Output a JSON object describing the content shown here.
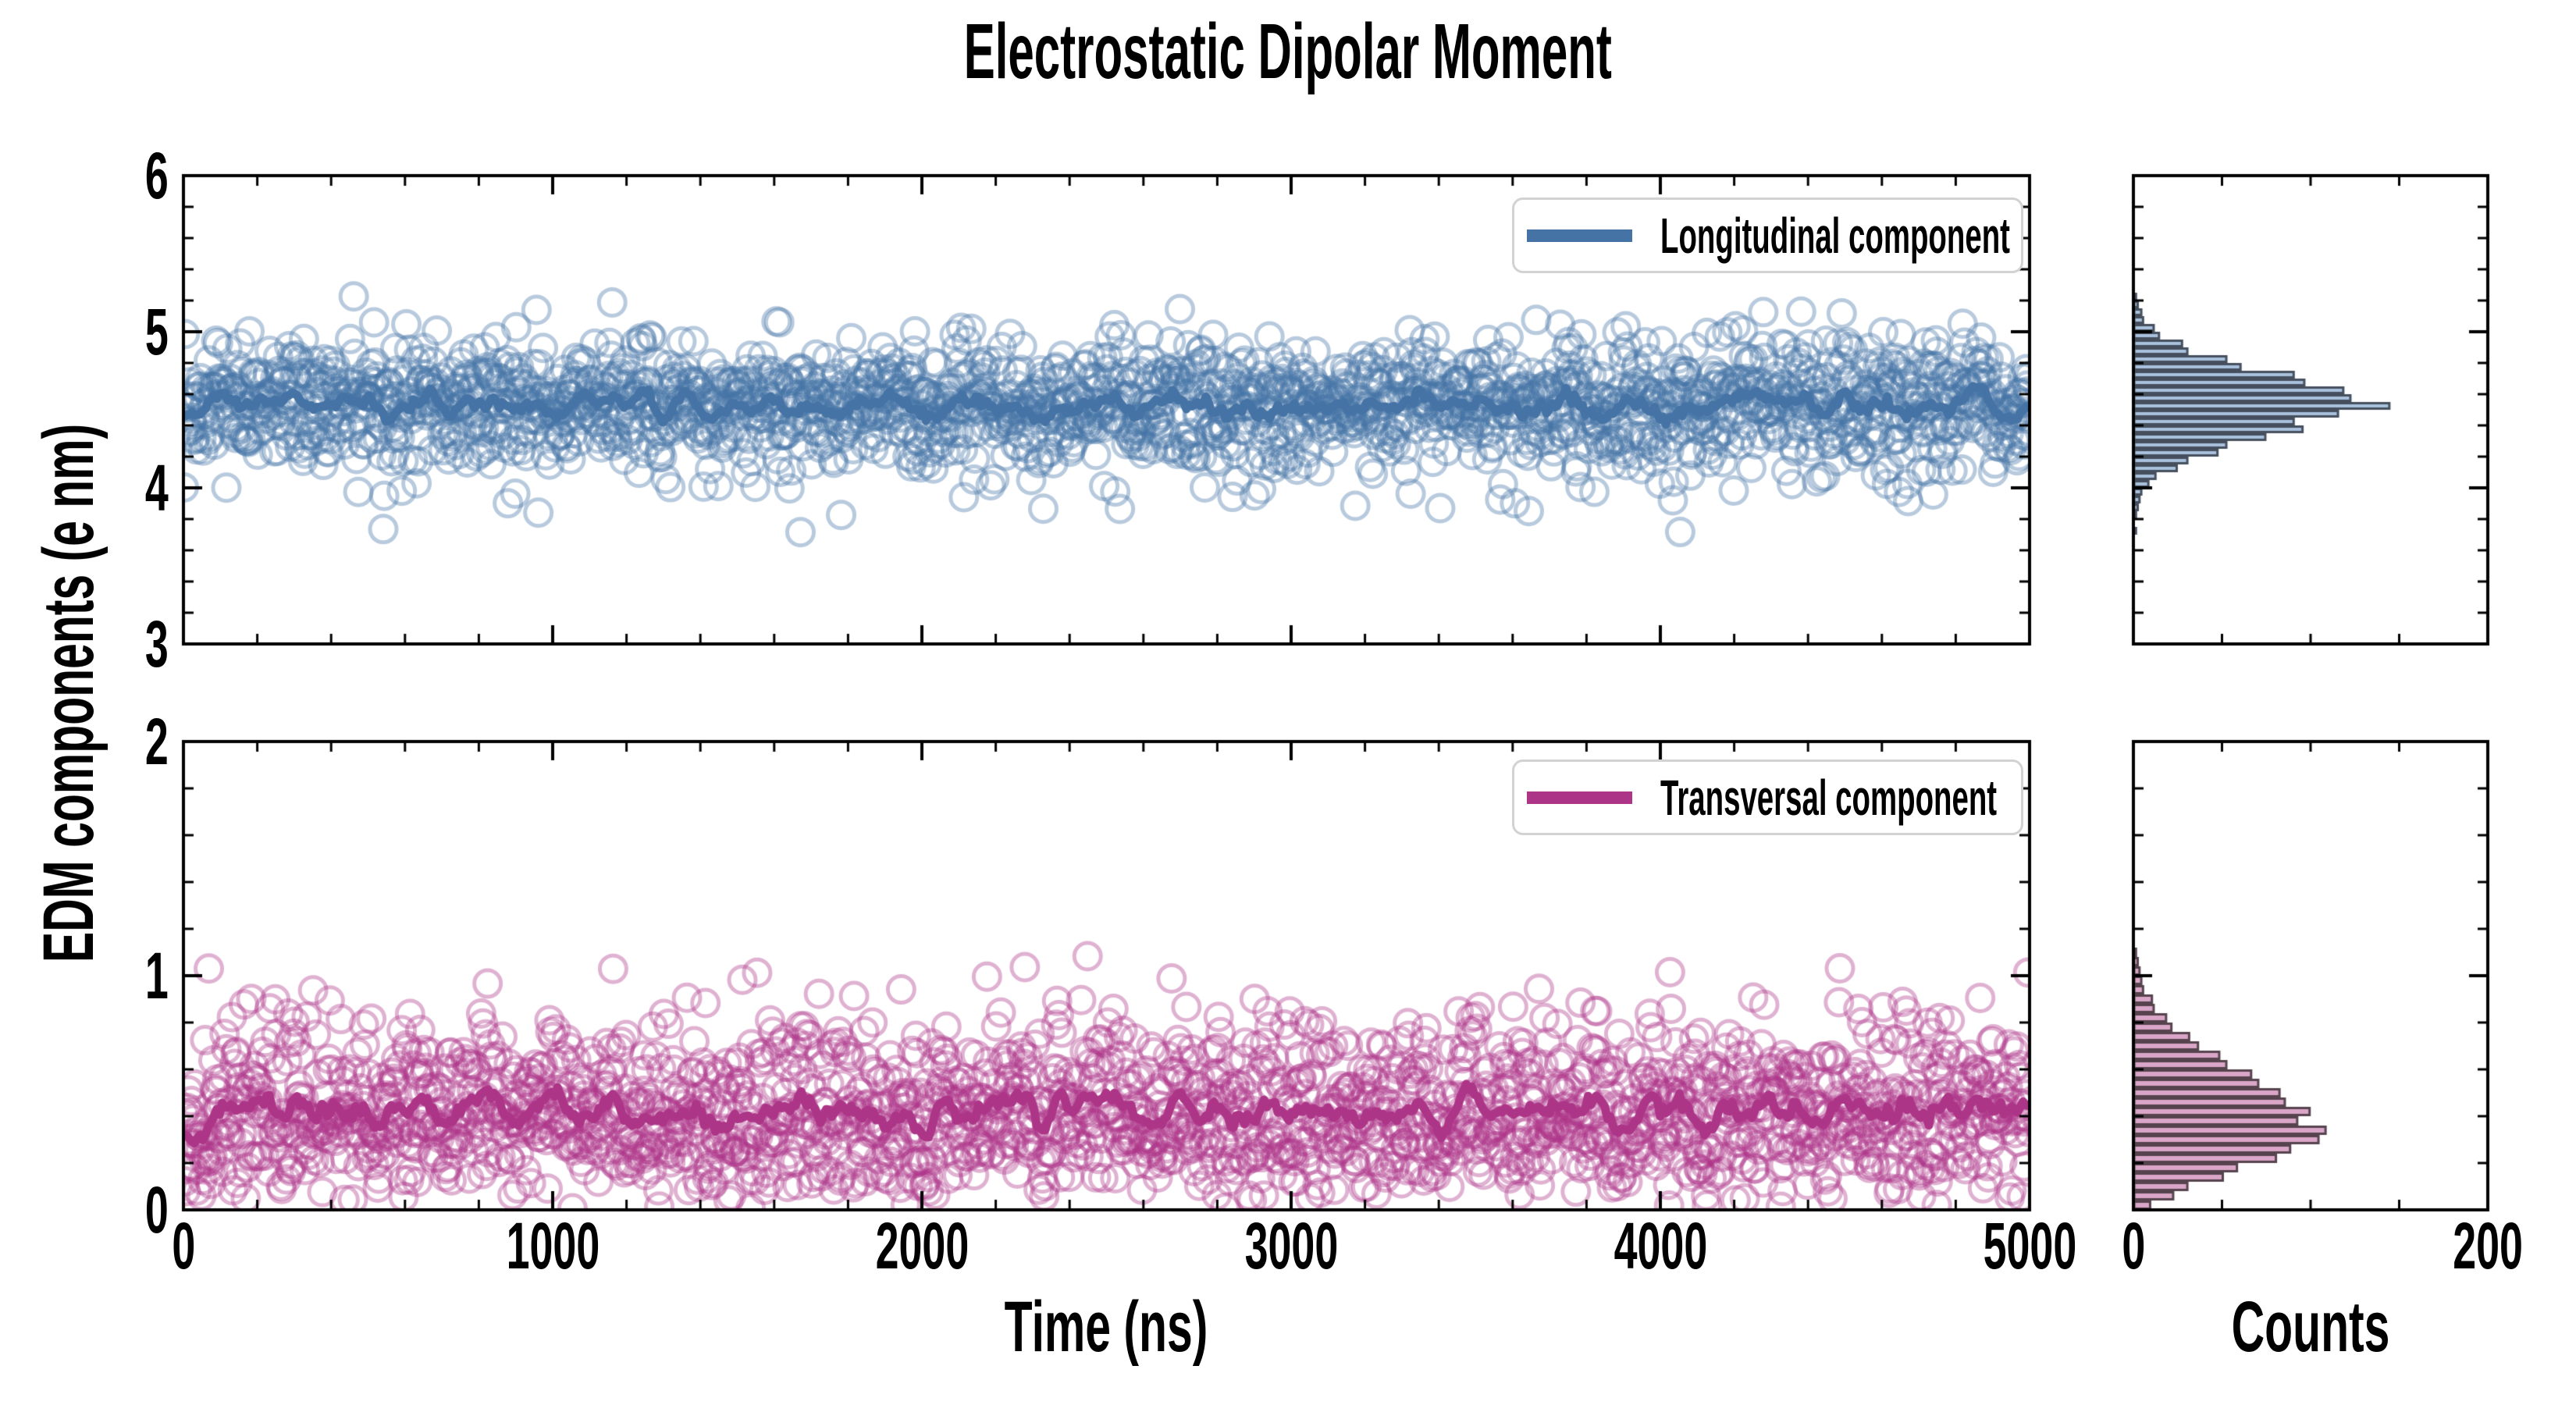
{
  "title": "Electrostatic Dipolar Moment",
  "axes": {
    "x_label": "Time (ns)",
    "y_label": "EDM components (e nm)",
    "counts_label": "Counts"
  },
  "chart_data": [
    {
      "type": "scatter",
      "panel": "top",
      "series": [
        {
          "name": "Longitudinal component",
          "style": "open-circle-scatter",
          "n_points": 2000,
          "mean": 4.51,
          "std": 0.24
        },
        {
          "name": "Longitudinal running mean",
          "style": "line",
          "window_pts": 21
        }
      ],
      "x": {
        "range": [
          0,
          5000
        ],
        "ticks": [
          0,
          1000,
          2000,
          3000,
          4000,
          5000
        ],
        "minor_step": 200
      },
      "y": {
        "range": [
          3,
          6
        ],
        "ticks": [
          6,
          5,
          4,
          3
        ],
        "minor_step": 0.2
      },
      "legend": {
        "label": "Longitudinal component",
        "position": "upper right"
      },
      "colors": {
        "line": "#4573a5",
        "scatter": "#4573a5",
        "scatter_alpha": 0.38,
        "hist_fill": "#a9c1dc",
        "hist_edge": "#454f5e"
      },
      "histogram": {
        "orientation": "horizontal",
        "counts_axis": {
          "range": [
            0,
            200
          ],
          "ticks": [
            0,
            200
          ],
          "minor_step": 50
        },
        "bin_start": 3.7,
        "bin_width": 0.05,
        "counts": [
          1,
          0,
          1,
          2,
          3,
          4,
          8,
          12,
          24,
          30,
          47,
          52,
          74,
          95,
          90,
          115,
          144,
          122,
          118,
          96,
          90,
          60,
          52,
          30,
          27,
          14,
          11,
          5,
          4,
          2,
          1
        ]
      },
      "seed": 7,
      "grid": false
    },
    {
      "type": "scatter",
      "panel": "bottom",
      "series": [
        {
          "name": "Transversal component",
          "style": "open-circle-scatter",
          "n_points": 2000,
          "mean": 0.41,
          "std": 0.21
        },
        {
          "name": "Transversal running mean",
          "style": "line",
          "window_pts": 21
        }
      ],
      "x": {
        "range": [
          0,
          5000
        ],
        "ticks": [
          0,
          1000,
          2000,
          3000,
          4000,
          5000
        ],
        "minor_step": 200
      },
      "y": {
        "range": [
          0,
          2
        ],
        "ticks": [
          2,
          1,
          0
        ],
        "minor_step": 0.2
      },
      "legend": {
        "label": "Transversal component",
        "position": "upper right"
      },
      "colors": {
        "line": "#ad3588",
        "scatter": "#ad3588",
        "scatter_alpha": 0.38,
        "hist_fill": "#d9a6c8",
        "hist_edge": "#56434e"
      },
      "histogram": {
        "orientation": "horizontal",
        "counts_axis": {
          "range": [
            0,
            200
          ],
          "ticks": [
            0,
            200
          ],
          "minor_step": 50
        },
        "bin_start": 0.0,
        "bin_width": 0.04,
        "counts": [
          9,
          22,
          30,
          50,
          58,
          80,
          88,
          104,
          108,
          92,
          99,
          85,
          82,
          70,
          66,
          52,
          48,
          36,
          31,
          21,
          18,
          11,
          10,
          5,
          4,
          3,
          2,
          1
        ]
      },
      "seed": 13,
      "grid": false
    }
  ]
}
